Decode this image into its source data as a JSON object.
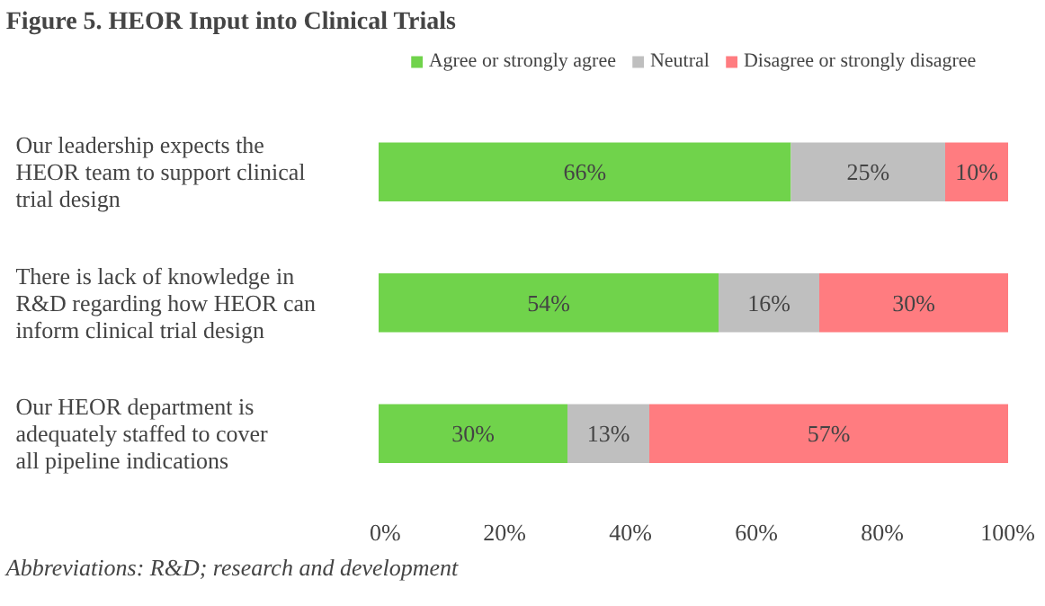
{
  "chart_data": {
    "type": "bar",
    "orientation": "horizontal",
    "stacked": true,
    "title": "Figure 5. HEOR Input into Clinical Trials",
    "categories": [
      "Our leadership expects the HEOR team to support clinical trial design",
      "There is lack of knowledge in R&D regarding how HEOR can inform clinical trial design",
      "Our HEOR department is adequately staffed to cover all pipeline indications"
    ],
    "series": [
      {
        "name": "Agree or strongly agree",
        "color": "#70d34b",
        "values": [
          65.5,
          54,
          30
        ],
        "value_labels": [
          "66%",
          "54%",
          "30%"
        ]
      },
      {
        "name": "Neutral",
        "color": "#bfbfbf",
        "values": [
          24.5,
          16,
          13
        ],
        "value_labels": [
          "25%",
          "16%",
          "13%"
        ]
      },
      {
        "name": "Disagree or strongly disagree",
        "color": "#ff7c80",
        "values": [
          10,
          30,
          57
        ],
        "value_labels": [
          "10%",
          "30%",
          "57%"
        ]
      }
    ],
    "xlim": [
      0,
      100
    ],
    "xticks": [
      {
        "value": 0,
        "label": "0%"
      },
      {
        "value": 20,
        "label": "20%"
      },
      {
        "value": 40,
        "label": "40%"
      },
      {
        "value": 60,
        "label": "60%"
      },
      {
        "value": 80,
        "label": "80%"
      },
      {
        "value": 100,
        "label": "100%"
      }
    ],
    "grid": false,
    "legend": "top",
    "annotations": [
      "Abbreviations: R&D; research and development"
    ]
  }
}
